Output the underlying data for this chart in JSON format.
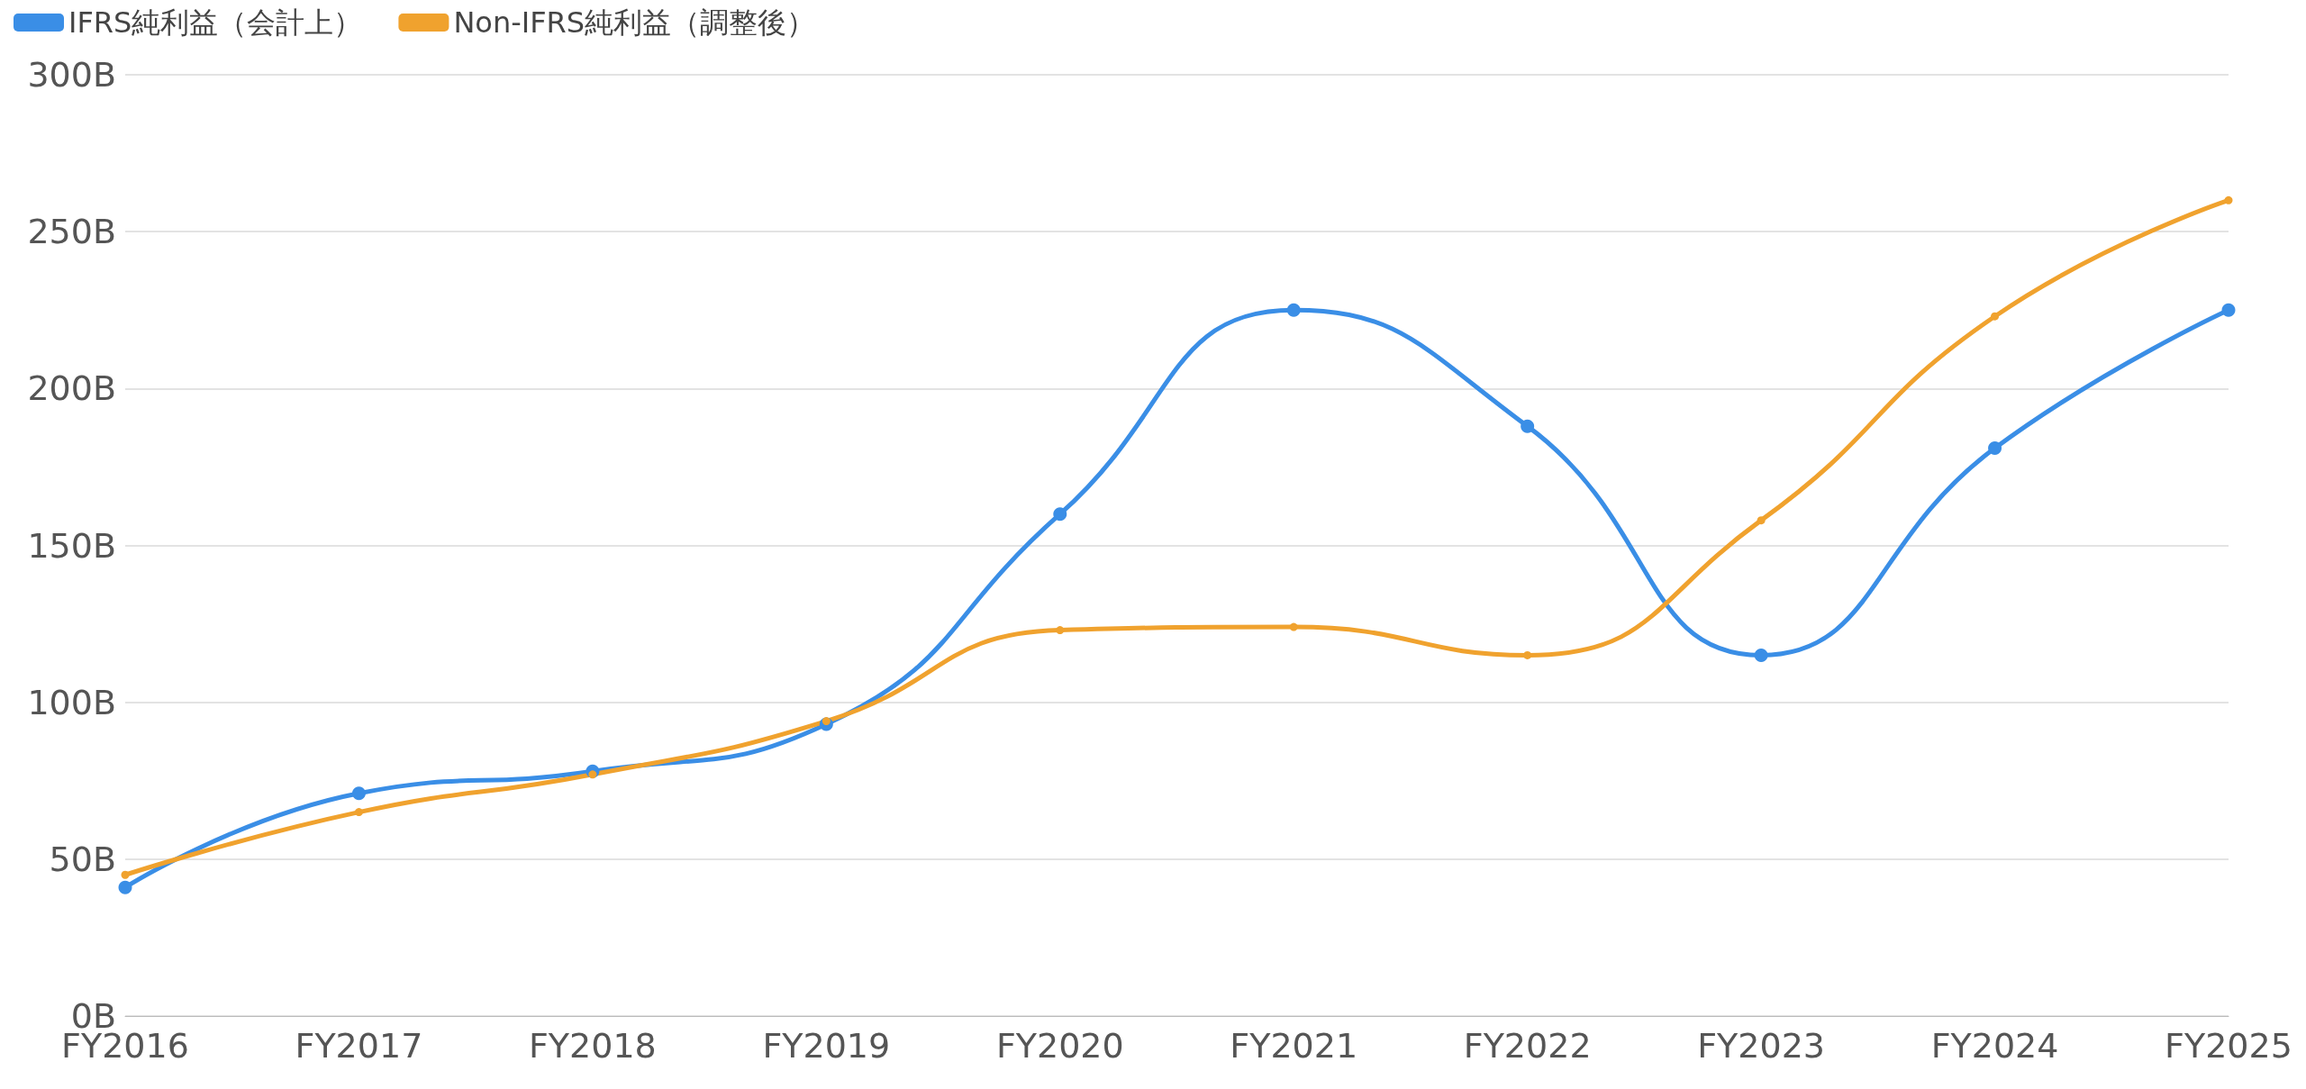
{
  "chart_data": {
    "type": "line",
    "categories": [
      "FY2016",
      "FY2017",
      "FY2018",
      "FY2019",
      "FY2020",
      "FY2021",
      "FY2022",
      "FY2023",
      "FY2024",
      "FY2025"
    ],
    "series": [
      {
        "name": "IFRS純利益（会計上）",
        "color": "#3a8ee6",
        "values": [
          41,
          71,
          78,
          93,
          160,
          225,
          188,
          115,
          181,
          225
        ]
      },
      {
        "name": "Non-IFRS純利益（調整後）",
        "color": "#f0a22e",
        "values": [
          45,
          65,
          77,
          94,
          123,
          124,
          115,
          158,
          223,
          260
        ]
      }
    ],
    "ylim": [
      0,
      300
    ],
    "yticks": [
      {
        "value": 0,
        "label": "0B"
      },
      {
        "value": 50,
        "label": "50B"
      },
      {
        "value": 100,
        "label": "100B"
      },
      {
        "value": 150,
        "label": "150B"
      },
      {
        "value": 200,
        "label": "200B"
      },
      {
        "value": 250,
        "label": "250B"
      },
      {
        "value": 300,
        "label": "300B"
      }
    ],
    "grid": "y",
    "legend": "top left",
    "marker": "circle",
    "line_style": "solid"
  }
}
